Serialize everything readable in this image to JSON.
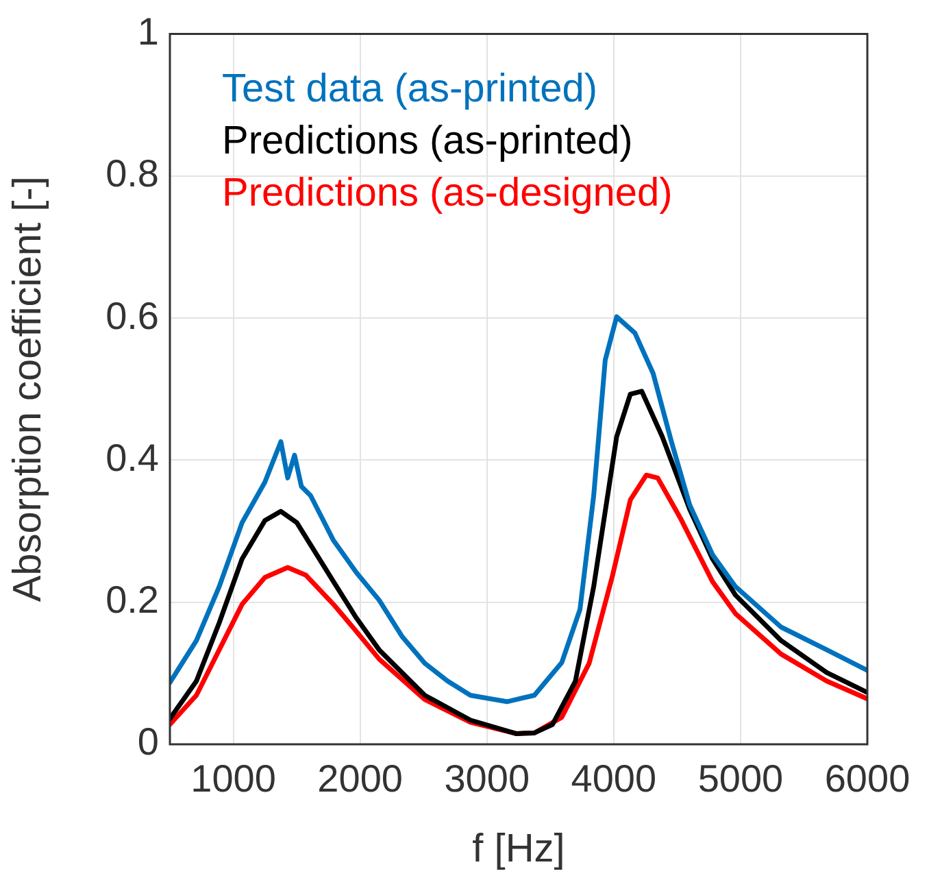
{
  "chart_data": {
    "type": "line",
    "xlabel": "f [Hz]",
    "ylabel": "Absorption coefficient [-]",
    "xlim": [
      500,
      6000
    ],
    "xticks": [
      1000,
      2000,
      3000,
      4000,
      5000,
      6000
    ],
    "ylim": [
      0,
      1
    ],
    "yticks": [
      0,
      0.2,
      0.4,
      0.6,
      0.8,
      1
    ],
    "grid": true,
    "legend": "top left",
    "marker": "none",
    "line_style": "solid",
    "series": [
      {
        "name": "Test data (as-printed)",
        "color": "#0072bd",
        "x": [
          500,
          709,
          889,
          1069,
          1249,
          1375,
          1429,
          1483,
          1537,
          1610,
          1790,
          1970,
          2150,
          2330,
          2510,
          2690,
          2870,
          3158,
          3374,
          3590,
          3734,
          3842,
          3933,
          4023,
          4167,
          4311,
          4455,
          4599,
          4779,
          4960,
          5320,
          5680,
          6000
        ],
        "values": [
          0.087,
          0.146,
          0.222,
          0.312,
          0.369,
          0.426,
          0.375,
          0.407,
          0.363,
          0.35,
          0.287,
          0.242,
          0.203,
          0.152,
          0.114,
          0.089,
          0.069,
          0.06,
          0.069,
          0.115,
          0.19,
          0.35,
          0.541,
          0.602,
          0.579,
          0.522,
          0.426,
          0.337,
          0.267,
          0.222,
          0.165,
          0.133,
          0.104
        ]
      },
      {
        "name": "Predictions (as-printed)",
        "color": "#000000",
        "x": [
          500,
          709,
          889,
          1069,
          1249,
          1375,
          1501,
          1790,
          1970,
          2150,
          2510,
          2870,
          3230,
          3374,
          3518,
          3698,
          3842,
          4023,
          4131,
          4221,
          4383,
          4599,
          4779,
          4960,
          5320,
          5680,
          6000
        ],
        "values": [
          0.036,
          0.089,
          0.171,
          0.261,
          0.315,
          0.328,
          0.312,
          0.229,
          0.178,
          0.133,
          0.069,
          0.034,
          0.015,
          0.016,
          0.028,
          0.089,
          0.222,
          0.433,
          0.493,
          0.497,
          0.433,
          0.331,
          0.261,
          0.21,
          0.146,
          0.101,
          0.073
        ]
      },
      {
        "name": "Predictions (as-designed)",
        "color": "#ff0000",
        "x": [
          500,
          709,
          889,
          1069,
          1249,
          1429,
          1573,
          1790,
          1970,
          2150,
          2510,
          2870,
          3230,
          3374,
          3590,
          3806,
          3987,
          4131,
          4257,
          4347,
          4527,
          4779,
          4960,
          5320,
          5680,
          6000
        ],
        "values": [
          0.028,
          0.069,
          0.133,
          0.197,
          0.235,
          0.249,
          0.238,
          0.197,
          0.159,
          0.12,
          0.063,
          0.031,
          0.015,
          0.016,
          0.038,
          0.114,
          0.235,
          0.344,
          0.379,
          0.375,
          0.318,
          0.229,
          0.184,
          0.127,
          0.089,
          0.064
        ]
      }
    ]
  }
}
